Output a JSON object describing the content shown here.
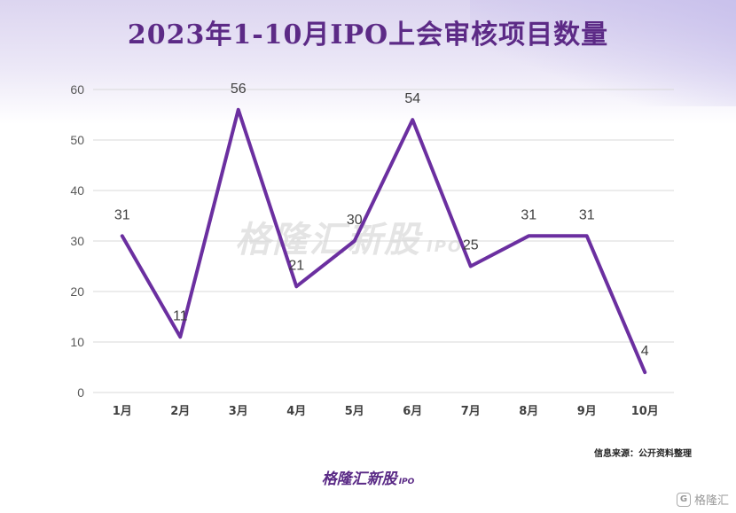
{
  "title": "2023年1-10月IPO上会审核项目数量",
  "watermark": {
    "main": "格隆汇新股",
    "sub": "IPO"
  },
  "source": "信息来源：公开资料整理",
  "brand": {
    "main": "格隆汇新股",
    "sub": "IPO"
  },
  "corner_logo": {
    "icon_glyph": "G",
    "text": "格隆汇"
  },
  "colors": {
    "line": "#6b2fa0",
    "title": "#5c2a86",
    "grid": "#d9d9d9"
  },
  "chart_data": {
    "type": "line",
    "categories": [
      "1月",
      "2月",
      "3月",
      "4月",
      "5月",
      "6月",
      "7月",
      "8月",
      "9月",
      "10月"
    ],
    "values": [
      31,
      11,
      56,
      21,
      30,
      54,
      25,
      31,
      31,
      4
    ],
    "ylim": [
      0,
      60
    ],
    "yticks": [
      0,
      10,
      20,
      30,
      40,
      50,
      60
    ],
    "grid": true,
    "legend": "none",
    "data_labels": true
  }
}
